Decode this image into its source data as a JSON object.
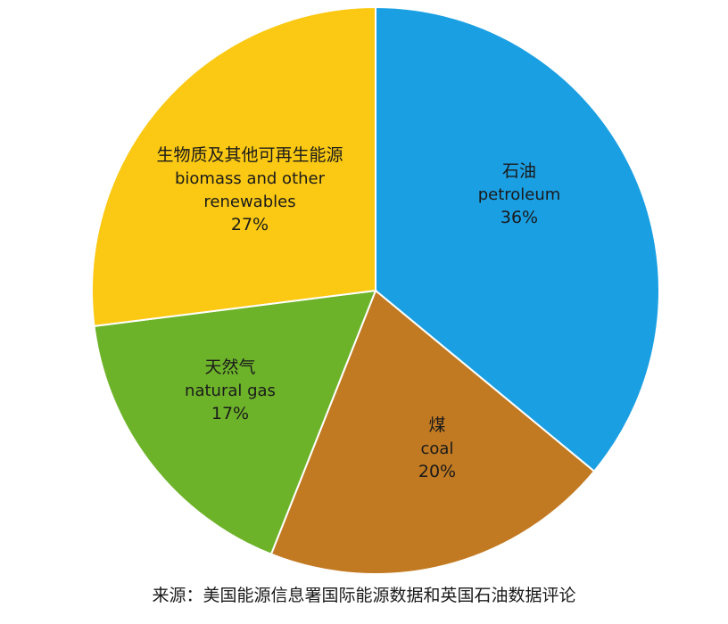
{
  "chart_data": {
    "type": "pie",
    "slices": [
      {
        "label_zh": "石油",
        "label_en": [
          "petroleum"
        ],
        "value": 36,
        "pct_text": "36%",
        "color": "#1a9fe3"
      },
      {
        "label_zh": "煤",
        "label_en": [
          "coal"
        ],
        "value": 20,
        "pct_text": "20%",
        "color": "#c27a22"
      },
      {
        "label_zh": "天然气",
        "label_en": [
          "natural gas"
        ],
        "value": 17,
        "pct_text": "17%",
        "color": "#6db32a"
      },
      {
        "label_zh": "生物质及其他可再生能源",
        "label_en": [
          "biomass and other",
          "renewables"
        ],
        "value": 27,
        "pct_text": "27%",
        "color": "#fbc913"
      }
    ]
  },
  "source": "来源：美国能源信息署国际能源数据和英国石油数据评论"
}
